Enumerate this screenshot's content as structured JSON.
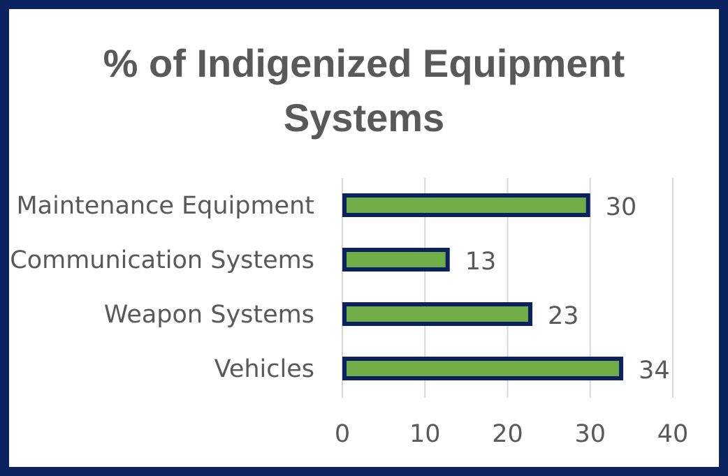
{
  "chart_data": {
    "type": "bar",
    "orientation": "horizontal",
    "title_lines": [
      "% of Indigenized Equipment",
      "Systems"
    ],
    "categories": [
      "Maintenance Equipment",
      "Communication Systems",
      "Weapon Systems",
      "Vehicles"
    ],
    "values": [
      30,
      13,
      23,
      34
    ],
    "data_labels": [
      "30",
      "13",
      "23",
      "34"
    ],
    "x_ticks": [
      "0",
      "10",
      "20",
      "30",
      "40"
    ],
    "xlim": [
      0,
      40
    ],
    "grid": "vertical",
    "legend": "none",
    "colors": {
      "bar_fill": "#70ad47",
      "bar_outline": "#0b2160",
      "frame": "#0b2160",
      "text": "#595959",
      "grid": "#d9d9d9"
    }
  }
}
